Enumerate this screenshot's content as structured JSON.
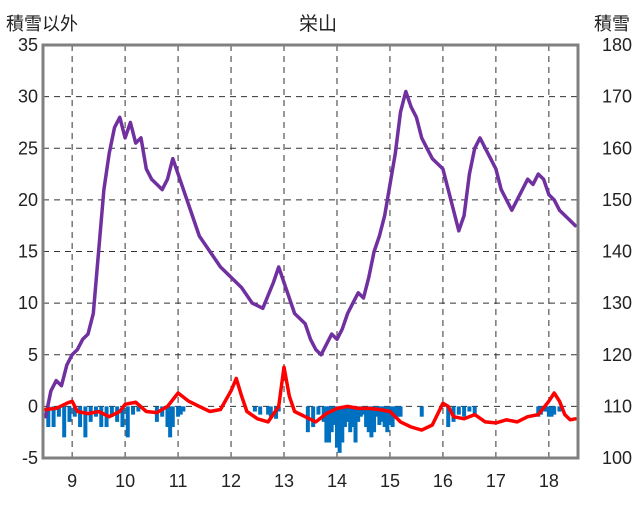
{
  "chart_data": {
    "type": "line",
    "title": "栄山",
    "ylabel_left": "積雪以外",
    "ylabel_right": "積雪",
    "x_ticks": [
      "9",
      "10",
      "11",
      "12",
      "13",
      "14",
      "15",
      "16",
      "17",
      "18"
    ],
    "x_range": [
      8.45,
      18.55
    ],
    "ylim_left": [
      -5,
      35
    ],
    "ylim_right": [
      100,
      180
    ],
    "yticks_left": [
      "35",
      "30",
      "25",
      "20",
      "15",
      "10",
      "5",
      "0",
      "-5"
    ],
    "yticks_right": [
      "180",
      "170",
      "160",
      "150",
      "140",
      "130",
      "120",
      "110",
      "100"
    ],
    "grid": "dashed",
    "colors": {
      "purple": "#7030a0",
      "red": "#ff0000",
      "blue": "#0070c0",
      "frame": "#808080",
      "grid": "#333333"
    },
    "series": [
      {
        "axis": "right",
        "color": "#7030a0",
        "x": [
          8.5,
          8.6,
          8.7,
          8.8,
          8.9,
          9.0,
          9.1,
          9.2,
          9.3,
          9.4,
          9.5,
          9.6,
          9.7,
          9.8,
          9.9,
          10.0,
          10.1,
          10.2,
          10.3,
          10.4,
          10.5,
          10.6,
          10.7,
          10.8,
          10.9,
          11.0,
          11.2,
          11.4,
          11.6,
          11.8,
          12.0,
          12.2,
          12.4,
          12.6,
          12.8,
          12.9,
          13.0,
          13.1,
          13.2,
          13.3,
          13.4,
          13.5,
          13.6,
          13.7,
          13.8,
          13.9,
          14.0,
          14.1,
          14.2,
          14.3,
          14.4,
          14.5,
          14.6,
          14.7,
          14.8,
          14.9,
          15.0,
          15.1,
          15.2,
          15.3,
          15.4,
          15.5,
          15.6,
          15.7,
          15.8,
          15.9,
          16.0,
          16.1,
          16.2,
          16.3,
          16.4,
          16.5,
          16.6,
          16.7,
          16.8,
          16.9,
          17.0,
          17.1,
          17.2,
          17.3,
          17.4,
          17.5,
          17.6,
          17.7,
          17.8,
          17.9,
          18.0,
          18.1,
          18.2,
          18.3,
          18.4,
          18.5
        ],
        "y": [
          108.0,
          113.0,
          115.0,
          114.0,
          118.0,
          120.0,
          121.0,
          123.0,
          124.0,
          128.0,
          140.0,
          152.0,
          159.0,
          164.0,
          166.0,
          162.0,
          165.0,
          161.0,
          162.0,
          156.0,
          154.0,
          153.0,
          152.0,
          154.0,
          158.0,
          155.0,
          149.0,
          143.0,
          140.0,
          137.0,
          135.0,
          133.0,
          130.0,
          129.0,
          134.0,
          137.0,
          134.0,
          131.0,
          128.0,
          127.0,
          126.0,
          123.0,
          121.0,
          120.0,
          122.0,
          124.0,
          123.0,
          125.0,
          128.0,
          130.0,
          132.0,
          131.0,
          135.0,
          140.0,
          143.0,
          147.0,
          153.0,
          159.0,
          167.0,
          171.0,
          168.0,
          166.0,
          162.0,
          160.0,
          158.0,
          157.0,
          156.0,
          152.0,
          148.0,
          144.0,
          147.0,
          155.0,
          160.0,
          162.0,
          160.0,
          158.0,
          156.0,
          152.0,
          150.0,
          148.0,
          150.0,
          152.0,
          154.0,
          153.0,
          155.0,
          154.0,
          151.0,
          150.0,
          148.0,
          147.0,
          146.0,
          145.0
        ]
      },
      {
        "axis": "left",
        "color": "#ff0000",
        "x": [
          8.5,
          8.7,
          8.9,
          9.0,
          9.1,
          9.3,
          9.5,
          9.7,
          9.9,
          10.0,
          10.2,
          10.4,
          10.6,
          10.8,
          11.0,
          11.2,
          11.4,
          11.6,
          11.8,
          12.0,
          12.1,
          12.2,
          12.3,
          12.5,
          12.7,
          12.9,
          13.0,
          13.1,
          13.2,
          13.4,
          13.6,
          13.8,
          14.0,
          14.2,
          14.4,
          14.6,
          14.8,
          15.0,
          15.2,
          15.4,
          15.6,
          15.8,
          16.0,
          16.1,
          16.2,
          16.4,
          16.6,
          16.8,
          17.0,
          17.2,
          17.4,
          17.6,
          17.8,
          18.0,
          18.1,
          18.2,
          18.3,
          18.4,
          18.5
        ],
        "y": [
          -0.3,
          -0.2,
          0.3,
          0.5,
          -0.5,
          -0.7,
          -0.5,
          -1.0,
          -0.5,
          0.2,
          0.4,
          -0.5,
          -0.6,
          0.0,
          1.3,
          0.5,
          0.0,
          -0.5,
          -0.3,
          1.5,
          2.7,
          1.0,
          -0.5,
          -1.2,
          -1.5,
          0.0,
          3.8,
          1.0,
          -0.5,
          -1.0,
          -1.5,
          -0.7,
          -0.2,
          0.0,
          -0.2,
          -0.2,
          -0.3,
          -0.5,
          -1.5,
          -2.0,
          -2.3,
          -1.8,
          0.3,
          0.0,
          -1.0,
          -1.2,
          -0.8,
          -1.5,
          -1.6,
          -1.3,
          -1.5,
          -1.0,
          -0.8,
          0.5,
          1.3,
          0.5,
          -0.8,
          -1.3,
          -1.2
        ]
      },
      {
        "type": "bar",
        "axis": "left",
        "color": "#0070c0",
        "x": [
          8.55,
          8.65,
          8.75,
          8.85,
          8.95,
          9.05,
          9.15,
          9.25,
          9.35,
          9.45,
          9.55,
          9.65,
          9.75,
          9.85,
          9.95,
          10.05,
          10.15,
          10.25,
          10.6,
          10.7,
          10.8,
          10.85,
          10.9,
          11.0,
          11.05,
          11.1,
          12.45,
          12.55,
          12.7,
          12.75,
          12.85,
          12.9,
          13.45,
          13.55,
          13.65,
          13.75,
          13.8,
          13.85,
          13.9,
          13.95,
          14.0,
          14.05,
          14.1,
          14.15,
          14.2,
          14.25,
          14.3,
          14.35,
          14.4,
          14.45,
          14.5,
          14.55,
          14.6,
          14.65,
          14.7,
          14.75,
          14.8,
          14.85,
          14.9,
          14.95,
          15.0,
          15.05,
          15.1,
          15.15,
          15.2,
          15.6,
          16.1,
          16.2,
          16.3,
          16.4,
          16.5,
          16.6,
          17.8,
          17.85,
          17.9,
          17.95,
          18.0,
          18.05,
          18.1,
          18.2
        ],
        "y": [
          -2.0,
          -2.0,
          -1.0,
          -3.0,
          -1.5,
          -1.0,
          -2.0,
          -3.0,
          -1.5,
          -1.0,
          -2.0,
          -2.0,
          -1.0,
          -1.5,
          -2.0,
          -3.0,
          -0.8,
          -0.5,
          -1.5,
          -1.0,
          -2.0,
          -3.0,
          -2.0,
          -1.0,
          -0.8,
          -0.5,
          -0.5,
          -0.8,
          -0.8,
          -1.0,
          -1.2,
          -0.5,
          -2.5,
          -2.0,
          -0.8,
          -1.5,
          -3.5,
          -3.5,
          -2.5,
          -1.8,
          -4.0,
          -4.5,
          -3.5,
          -2.0,
          -1.5,
          -2.5,
          -2.0,
          -3.5,
          -1.5,
          -1.0,
          -0.8,
          -2.0,
          -2.5,
          -3.0,
          -2.5,
          -1.0,
          -1.8,
          -1.5,
          -2.0,
          -2.5,
          -1.8,
          -2.0,
          -1.0,
          -1.0,
          -1.0,
          -1.0,
          -2.0,
          -1.5,
          -0.8,
          -1.0,
          -0.5,
          -0.8,
          -1.0,
          -0.8,
          -0.5,
          -0.5,
          -1.0,
          -1.0,
          -0.8,
          -0.5
        ]
      }
    ]
  }
}
